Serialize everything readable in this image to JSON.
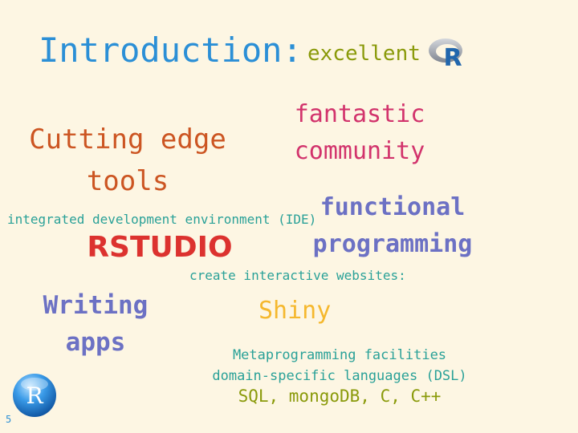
{
  "slide": {
    "title": "Introduction:",
    "excellent": "excellent",
    "logo_letter": "R",
    "cutting_edge": [
      "Cutting edge",
      "tools"
    ],
    "community": [
      "fantastic",
      "community"
    ],
    "ide_label": "integrated development environment (IDE)",
    "rstudio": "RSTUDIO",
    "functional": [
      "functional",
      "programming"
    ],
    "interactive_label": "create interactive websites:",
    "shiny": "Shiny",
    "writing_apps": [
      "Writing",
      "apps"
    ],
    "metaprogramming": [
      "Metaprogramming facilities",
      "domain-specific languages (DSL)"
    ],
    "languages": "SQL, mongoDB, C, C++",
    "ball_letter": "R",
    "page_number": "5"
  },
  "icons": {
    "top_logo": "r-logo-icon",
    "bottom_logo": "r-ball-icon"
  },
  "colors": {
    "background": "#fdf6e3",
    "blue": "#2b8fd6",
    "olive": "#8a9a0a",
    "orange": "#cc5522",
    "magenta": "#d2336c",
    "cyan": "#2aa198",
    "red": "#dc322f",
    "violet": "#6c71c4",
    "yellow": "#f5b82e"
  }
}
